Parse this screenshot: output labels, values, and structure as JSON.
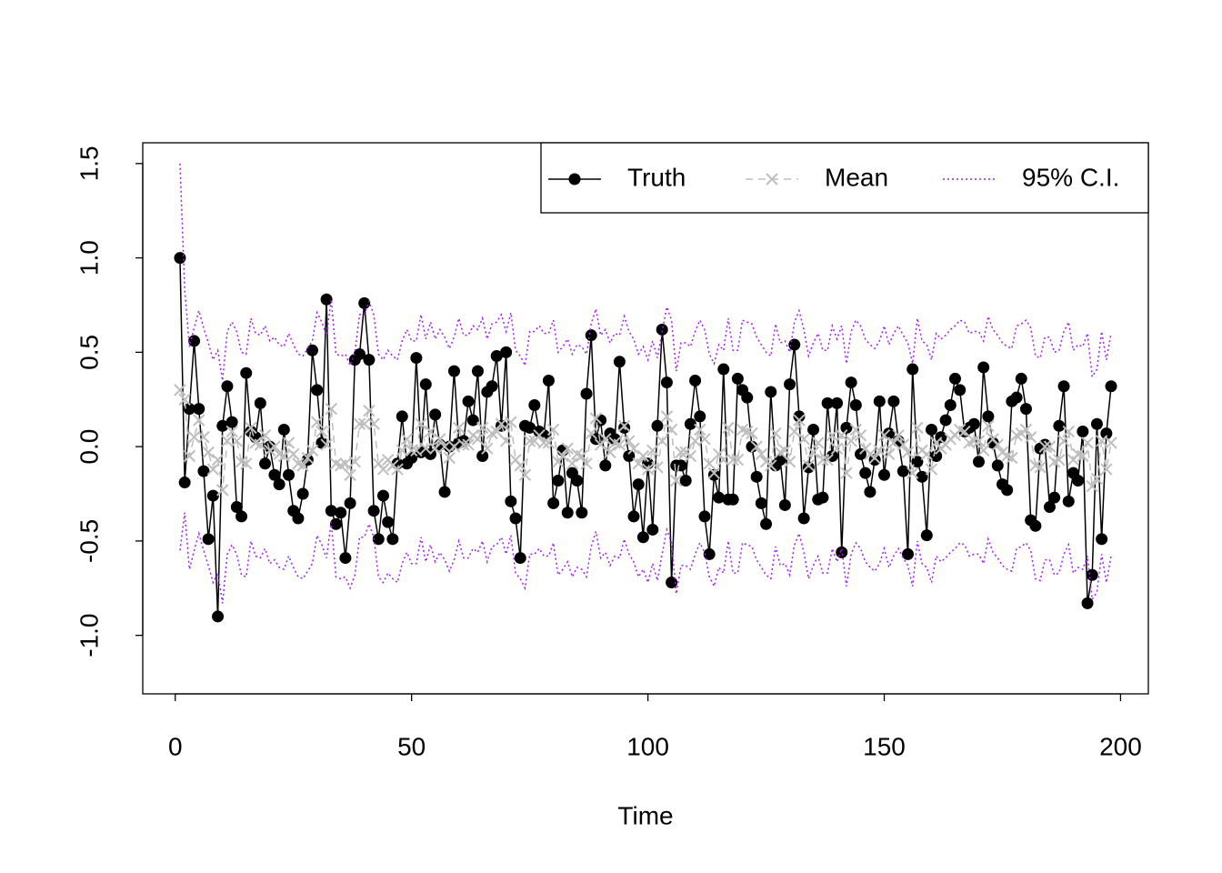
{
  "chart_data": {
    "type": "line",
    "xlabel": "Time",
    "x": [
      1,
      2,
      3,
      4,
      5,
      6,
      7,
      8,
      9,
      10,
      11,
      12,
      13,
      14,
      15,
      16,
      17,
      18,
      19,
      20,
      21,
      22,
      23,
      24,
      25,
      26,
      27,
      28,
      29,
      30,
      31,
      32,
      33,
      34,
      35,
      36,
      37,
      38,
      39,
      40,
      41,
      42,
      43,
      44,
      45,
      46,
      47,
      48,
      49,
      50,
      51,
      52,
      53,
      54,
      55,
      56,
      57,
      58,
      59,
      60,
      61,
      62,
      63,
      64,
      65,
      66,
      67,
      68,
      69,
      70,
      71,
      72,
      73,
      74,
      75,
      76,
      77,
      78,
      79,
      80,
      81,
      82,
      83,
      84,
      85,
      86,
      87,
      88,
      89,
      90,
      91,
      92,
      93,
      94,
      95,
      96,
      97,
      98,
      99,
      100,
      101,
      102,
      103,
      104,
      105,
      106,
      107,
      108,
      109,
      110,
      111,
      112,
      113,
      114,
      115,
      116,
      117,
      118,
      119,
      120,
      121,
      122,
      123,
      124,
      125,
      126,
      127,
      128,
      129,
      130,
      131,
      132,
      133,
      134,
      135,
      136,
      137,
      138,
      139,
      140,
      141,
      142,
      143,
      144,
      145,
      146,
      147,
      148,
      149,
      150,
      151,
      152,
      153,
      154,
      155,
      156,
      157,
      158,
      159,
      160,
      161,
      162,
      163,
      164,
      165,
      166,
      167,
      168,
      169,
      170,
      171,
      172,
      173,
      174,
      175,
      176,
      177,
      178,
      179,
      180,
      181,
      182,
      183,
      184,
      185,
      186,
      187,
      188,
      189,
      190,
      191,
      192,
      193,
      194,
      195,
      196,
      197,
      198
    ],
    "series": [
      {
        "name": "Truth",
        "color": "#000000",
        "values": [
          1.0,
          -0.19,
          0.2,
          0.56,
          0.2,
          -0.13,
          -0.49,
          -0.26,
          -0.9,
          0.11,
          0.32,
          0.13,
          -0.32,
          -0.37,
          0.39,
          0.08,
          0.05,
          0.23,
          -0.09,
          0.0,
          -0.15,
          -0.2,
          0.09,
          -0.15,
          -0.34,
          -0.38,
          -0.25,
          -0.07,
          0.51,
          0.3,
          0.02,
          0.78,
          -0.34,
          -0.41,
          -0.35,
          -0.59,
          -0.3,
          0.46,
          0.49,
          0.76,
          0.46,
          -0.34,
          -0.49,
          -0.26,
          -0.4,
          -0.49,
          -0.09,
          0.16,
          -0.09,
          -0.06,
          0.47,
          -0.03,
          0.33,
          -0.04,
          0.17,
          0.01,
          -0.24,
          0.0,
          0.4,
          0.02,
          0.03,
          0.24,
          0.14,
          0.4,
          -0.05,
          0.29,
          0.32,
          0.48,
          0.11,
          0.5,
          -0.29,
          -0.38,
          -0.59,
          0.11,
          0.1,
          0.22,
          0.08,
          0.06,
          0.35,
          -0.3,
          -0.18,
          -0.02,
          -0.35,
          -0.14,
          -0.18,
          -0.35,
          0.28,
          0.59,
          0.04,
          0.14,
          -0.1,
          0.07,
          0.04,
          0.45,
          0.1,
          -0.05,
          -0.37,
          -0.2,
          -0.48,
          -0.09,
          -0.44,
          0.11,
          0.62,
          0.34,
          -0.72,
          -0.1,
          -0.1,
          -0.18,
          0.12,
          0.35,
          0.16,
          -0.37,
          -0.57,
          -0.15,
          -0.27,
          0.41,
          -0.28,
          -0.28,
          0.36,
          0.3,
          0.26,
          0.0,
          -0.16,
          -0.3,
          -0.41,
          0.29,
          -0.1,
          -0.07,
          -0.31,
          0.33,
          0.54,
          0.16,
          -0.38,
          -0.11,
          0.09,
          -0.28,
          -0.27,
          0.23,
          -0.05,
          0.23,
          -0.56,
          0.1,
          0.34,
          0.22,
          -0.04,
          -0.14,
          -0.24,
          -0.07,
          0.24,
          -0.15,
          0.07,
          0.24,
          0.03,
          -0.13,
          -0.57,
          0.41,
          -0.08,
          -0.16,
          -0.47,
          0.09,
          -0.05,
          0.05,
          0.14,
          0.22,
          0.36,
          0.3,
          0.08,
          0.1,
          0.12,
          -0.08,
          0.42,
          0.16,
          0.02,
          -0.1,
          -0.2,
          -0.23,
          0.24,
          0.26,
          0.36,
          0.2,
          -0.39,
          -0.42,
          -0.01,
          0.01,
          -0.32,
          -0.27,
          0.11,
          0.32,
          -0.29,
          -0.14,
          -0.18,
          0.08,
          -0.83,
          -0.68,
          0.12,
          -0.49,
          0.07,
          0.32
        ]
      },
      {
        "name": "Mean",
        "color": "#bebebe",
        "values": [
          0.3,
          0.25,
          -0.05,
          0.05,
          0.14,
          0.05,
          -0.03,
          -0.12,
          -0.07,
          -0.23,
          0.03,
          0.08,
          0.03,
          -0.08,
          -0.09,
          0.1,
          0.02,
          0.01,
          0.06,
          -0.02,
          0.0,
          -0.04,
          -0.05,
          0.02,
          -0.04,
          -0.09,
          -0.1,
          -0.06,
          -0.02,
          0.13,
          0.08,
          0.01,
          0.2,
          -0.09,
          -0.1,
          -0.09,
          -0.15,
          -0.08,
          0.12,
          0.12,
          0.19,
          0.12,
          -0.09,
          -0.12,
          -0.07,
          -0.1,
          -0.12,
          -0.02,
          0.04,
          -0.02,
          -0.02,
          0.12,
          -0.01,
          0.08,
          -0.01,
          0.04,
          0.0,
          -0.06,
          0.0,
          0.1,
          0.01,
          0.01,
          0.06,
          0.04,
          0.1,
          -0.01,
          0.07,
          0.08,
          0.12,
          0.03,
          0.13,
          -0.07,
          -0.1,
          -0.15,
          0.03,
          0.03,
          0.06,
          0.02,
          0.02,
          0.09,
          -0.08,
          -0.05,
          -0.01,
          -0.09,
          -0.04,
          -0.05,
          -0.09,
          0.07,
          0.15,
          0.01,
          0.04,
          -0.03,
          0.02,
          0.01,
          0.11,
          0.03,
          -0.01,
          -0.09,
          -0.05,
          -0.12,
          -0.02,
          -0.11,
          0.03,
          0.16,
          0.09,
          -0.18,
          -0.03,
          -0.03,
          -0.05,
          0.03,
          0.09,
          0.04,
          -0.09,
          -0.14,
          -0.04,
          -0.07,
          0.1,
          -0.07,
          -0.07,
          0.09,
          0.08,
          0.07,
          0.0,
          -0.04,
          -0.08,
          -0.1,
          0.07,
          -0.03,
          -0.02,
          -0.08,
          0.08,
          0.14,
          0.04,
          -0.1,
          -0.03,
          0.02,
          -0.07,
          -0.07,
          0.06,
          -0.01,
          0.06,
          -0.14,
          0.03,
          0.09,
          0.06,
          -0.01,
          -0.04,
          -0.06,
          -0.02,
          0.06,
          -0.04,
          0.02,
          0.06,
          0.01,
          -0.03,
          -0.14,
          0.1,
          -0.02,
          -0.04,
          -0.12,
          0.02,
          -0.01,
          0.01,
          0.04,
          0.06,
          0.09,
          0.08,
          0.02,
          0.03,
          0.03,
          -0.02,
          0.11,
          0.04,
          0.01,
          -0.03,
          -0.05,
          -0.06,
          0.06,
          0.07,
          0.09,
          0.05,
          -0.1,
          -0.11,
          0.0,
          0.0,
          -0.08,
          -0.07,
          0.03,
          0.08,
          -0.07,
          -0.04,
          -0.05,
          0.02,
          -0.21,
          -0.17,
          0.03,
          -0.12,
          0.02
        ]
      },
      {
        "name": "95% C.I.",
        "color": "#a020f0",
        "upper": [
          1.5,
          0.83,
          0.53,
          0.63,
          0.72,
          0.63,
          0.55,
          0.46,
          0.51,
          0.35,
          0.61,
          0.66,
          0.61,
          0.5,
          0.49,
          0.68,
          0.6,
          0.59,
          0.64,
          0.56,
          0.58,
          0.54,
          0.53,
          0.6,
          0.54,
          0.49,
          0.48,
          0.52,
          0.56,
          0.71,
          0.66,
          0.59,
          0.78,
          0.49,
          0.48,
          0.49,
          0.43,
          0.5,
          0.7,
          0.7,
          0.77,
          0.7,
          0.49,
          0.46,
          0.51,
          0.48,
          0.46,
          0.56,
          0.62,
          0.56,
          0.56,
          0.7,
          0.57,
          0.66,
          0.57,
          0.62,
          0.58,
          0.52,
          0.58,
          0.68,
          0.59,
          0.59,
          0.64,
          0.62,
          0.68,
          0.57,
          0.65,
          0.66,
          0.7,
          0.61,
          0.71,
          0.51,
          0.48,
          0.43,
          0.61,
          0.61,
          0.64,
          0.6,
          0.6,
          0.67,
          0.5,
          0.53,
          0.57,
          0.49,
          0.54,
          0.53,
          0.49,
          0.65,
          0.73,
          0.59,
          0.62,
          0.55,
          0.6,
          0.59,
          0.69,
          0.61,
          0.57,
          0.49,
          0.53,
          0.46,
          0.56,
          0.47,
          0.61,
          0.74,
          0.67,
          0.4,
          0.55,
          0.55,
          0.53,
          0.61,
          0.67,
          0.62,
          0.49,
          0.44,
          0.54,
          0.51,
          0.68,
          0.51,
          0.51,
          0.67,
          0.66,
          0.65,
          0.58,
          0.54,
          0.5,
          0.48,
          0.65,
          0.55,
          0.56,
          0.5,
          0.66,
          0.72,
          0.62,
          0.48,
          0.55,
          0.6,
          0.51,
          0.51,
          0.64,
          0.57,
          0.64,
          0.44,
          0.61,
          0.67,
          0.64,
          0.57,
          0.54,
          0.52,
          0.56,
          0.64,
          0.54,
          0.6,
          0.64,
          0.59,
          0.55,
          0.44,
          0.68,
          0.56,
          0.54,
          0.46,
          0.6,
          0.57,
          0.59,
          0.62,
          0.64,
          0.67,
          0.66,
          0.6,
          0.61,
          0.61,
          0.56,
          0.69,
          0.62,
          0.59,
          0.55,
          0.53,
          0.52,
          0.64,
          0.65,
          0.67,
          0.63,
          0.48,
          0.47,
          0.58,
          0.58,
          0.5,
          0.51,
          0.61,
          0.66,
          0.51,
          0.54,
          0.53,
          0.6,
          0.37,
          0.41,
          0.61,
          0.46,
          0.6
        ],
        "lower": [
          -0.55,
          -0.35,
          -0.65,
          -0.55,
          -0.46,
          -0.55,
          -0.63,
          -0.72,
          -0.67,
          -0.83,
          -0.57,
          -0.52,
          -0.57,
          -0.68,
          -0.69,
          -0.5,
          -0.58,
          -0.59,
          -0.54,
          -0.62,
          -0.6,
          -0.64,
          -0.65,
          -0.58,
          -0.64,
          -0.69,
          -0.7,
          -0.66,
          -0.62,
          -0.47,
          -0.52,
          -0.59,
          -0.4,
          -0.69,
          -0.7,
          -0.69,
          -0.75,
          -0.68,
          -0.48,
          -0.48,
          -0.41,
          -0.48,
          -0.69,
          -0.72,
          -0.67,
          -0.7,
          -0.72,
          -0.62,
          -0.56,
          -0.62,
          -0.62,
          -0.48,
          -0.61,
          -0.52,
          -0.61,
          -0.56,
          -0.6,
          -0.66,
          -0.6,
          -0.5,
          -0.59,
          -0.59,
          -0.54,
          -0.56,
          -0.5,
          -0.61,
          -0.53,
          -0.52,
          -0.48,
          -0.57,
          -0.47,
          -0.67,
          -0.7,
          -0.75,
          -0.57,
          -0.57,
          -0.54,
          -0.58,
          -0.58,
          -0.51,
          -0.68,
          -0.65,
          -0.61,
          -0.69,
          -0.64,
          -0.65,
          -0.69,
          -0.53,
          -0.45,
          -0.59,
          -0.56,
          -0.63,
          -0.58,
          -0.59,
          -0.49,
          -0.57,
          -0.61,
          -0.69,
          -0.65,
          -0.72,
          -0.62,
          -0.71,
          -0.57,
          -0.44,
          -0.51,
          -0.78,
          -0.63,
          -0.63,
          -0.65,
          -0.57,
          -0.51,
          -0.56,
          -0.69,
          -0.74,
          -0.64,
          -0.67,
          -0.5,
          -0.67,
          -0.67,
          -0.51,
          -0.52,
          -0.53,
          -0.6,
          -0.64,
          -0.68,
          -0.7,
          -0.53,
          -0.63,
          -0.62,
          -0.68,
          -0.52,
          -0.46,
          -0.56,
          -0.7,
          -0.63,
          -0.58,
          -0.67,
          -0.67,
          -0.54,
          -0.61,
          -0.54,
          -0.74,
          -0.57,
          -0.51,
          -0.54,
          -0.61,
          -0.64,
          -0.66,
          -0.62,
          -0.54,
          -0.64,
          -0.58,
          -0.54,
          -0.59,
          -0.63,
          -0.74,
          -0.5,
          -0.62,
          -0.64,
          -0.72,
          -0.58,
          -0.61,
          -0.59,
          -0.56,
          -0.54,
          -0.51,
          -0.52,
          -0.58,
          -0.57,
          -0.57,
          -0.62,
          -0.49,
          -0.56,
          -0.59,
          -0.63,
          -0.65,
          -0.66,
          -0.54,
          -0.53,
          -0.51,
          -0.55,
          -0.7,
          -0.71,
          -0.6,
          -0.6,
          -0.68,
          -0.67,
          -0.57,
          -0.52,
          -0.67,
          -0.64,
          -0.65,
          -0.58,
          -0.81,
          -0.77,
          -0.57,
          -0.72,
          -0.58
        ]
      }
    ],
    "xlim": [
      -6.88,
      205.88
    ],
    "ylim": [
      -1.31,
      1.61
    ],
    "xticks": [
      0,
      50,
      100,
      150,
      200
    ],
    "yticks": [
      {
        "value": -1,
        "label": "-1.0"
      },
      -0.5,
      {
        "value": 0,
        "label": "0.0"
      },
      0.5,
      {
        "value": 1,
        "label": "1.0"
      },
      1.5
    ],
    "legend": "topright"
  }
}
